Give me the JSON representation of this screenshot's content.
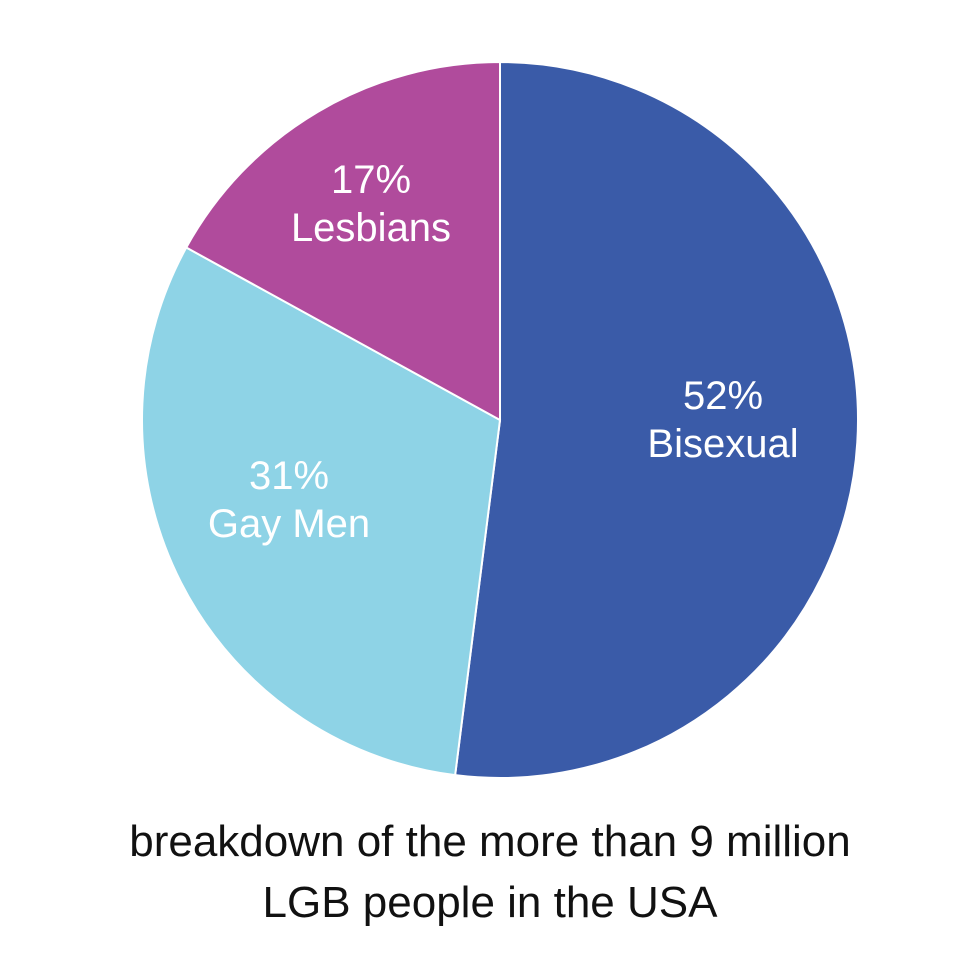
{
  "chart_data": {
    "type": "pie",
    "title": "",
    "caption": "breakdown of the more than 9 million LGB people in the USA",
    "categories": [
      "Bisexual",
      "Gay Men",
      "Lesbians"
    ],
    "values": [
      52,
      31,
      17
    ],
    "unit": "%",
    "colors": [
      "#3a5ba8",
      "#8ed3e6",
      "#b04b9c"
    ],
    "start_angle_deg": 0,
    "direction": "clockwise",
    "labels_inside": true
  },
  "slices": [
    {
      "pct": "52%",
      "name": "Bisexual"
    },
    {
      "pct": "31%",
      "name": "Gay Men"
    },
    {
      "pct": "17%",
      "name": "Lesbians"
    }
  ],
  "caption": {
    "line1": "breakdown of the more than 9 million",
    "line2": "LGB people in the USA"
  }
}
